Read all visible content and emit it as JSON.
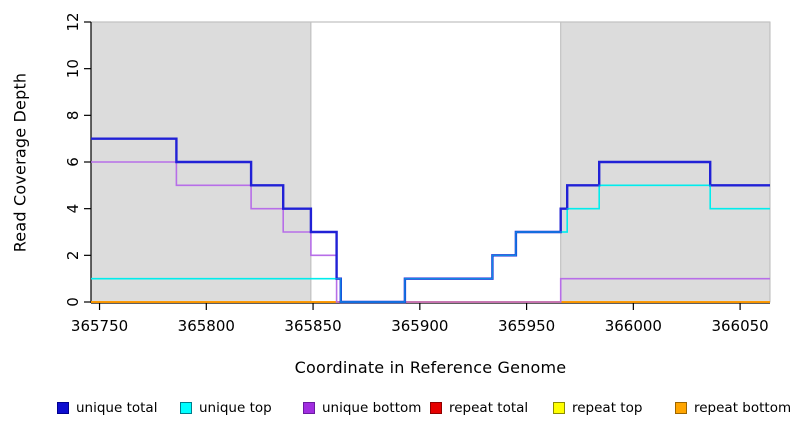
{
  "chart_data": {
    "type": "line",
    "subtype": "step",
    "title": "",
    "xlabel": "Coordinate in Reference Genome",
    "ylabel": "Read Coverage Depth",
    "xlim": [
      365746,
      366064
    ],
    "ylim": [
      0,
      12
    ],
    "x_ticks": [
      365750,
      365800,
      365850,
      365900,
      365950,
      366000,
      366050
    ],
    "y_ticks": [
      0,
      2,
      4,
      6,
      8,
      10,
      12
    ],
    "grid": false,
    "background_color": "#ffffff",
    "shading_color": "#dcdcdc",
    "shading_border_color": "#b9b9b9",
    "axis_color": "#000000",
    "shaded_regions": [
      {
        "name": "left-gray-region",
        "from": 365746,
        "to": 365849
      },
      {
        "name": "right-gray-region",
        "from": 365966,
        "to": 366064
      }
    ],
    "series": [
      {
        "name": "repeat top",
        "color": "#ffff00",
        "width": 1.5,
        "steps": [
          [
            365746,
            0
          ]
        ]
      },
      {
        "name": "repeat total",
        "color": "#dd0000",
        "width": 1.5,
        "steps": [
          [
            365746,
            0
          ]
        ]
      },
      {
        "name": "repeat bottom",
        "color": "#ff9f00",
        "width": 1.8,
        "steps": [
          [
            365746,
            0
          ]
        ]
      },
      {
        "name": "unique bottom",
        "color": "#b76ee8",
        "width": 1.6,
        "steps": [
          [
            365746,
            6
          ],
          [
            365786,
            5
          ],
          [
            365821,
            4
          ],
          [
            365836,
            3
          ],
          [
            365849,
            2
          ],
          [
            365861,
            0
          ],
          [
            365966,
            1
          ]
        ]
      },
      {
        "name": "unique top",
        "color": "#00eded",
        "width": 1.6,
        "steps": [
          [
            365746,
            1
          ],
          [
            365863,
            0
          ],
          [
            365893,
            1
          ],
          [
            365934,
            2
          ],
          [
            365945,
            3
          ],
          [
            365969,
            4
          ],
          [
            365984,
            5
          ],
          [
            366036,
            4
          ]
        ]
      },
      {
        "name": "unique total",
        "color": "#2121d6",
        "width": 2.4,
        "steps": [
          [
            365746,
            7
          ],
          [
            365786,
            6
          ],
          [
            365821,
            5
          ],
          [
            365836,
            4
          ],
          [
            365849,
            3
          ],
          [
            365861,
            1
          ],
          [
            365863,
            0
          ],
          [
            365893,
            1
          ],
          [
            365934,
            2
          ],
          [
            365945,
            3
          ],
          [
            365966,
            4
          ],
          [
            365969,
            5
          ],
          [
            365984,
            6
          ],
          [
            366036,
            5
          ]
        ]
      }
    ],
    "legend": [
      {
        "label": "unique total",
        "fill": "#0d0dd0",
        "border": "#000090"
      },
      {
        "label": "unique top",
        "fill": "#00ffff",
        "border": "#007d8c"
      },
      {
        "label": "unique bottom",
        "fill": "#a12de0",
        "border": "#6a1ba0"
      },
      {
        "label": "repeat total",
        "fill": "#e60000",
        "border": "#8f0000"
      },
      {
        "label": "repeat top",
        "fill": "#ffff00",
        "border": "#8c8c00"
      },
      {
        "label": "repeat bottom",
        "fill": "#ffa500",
        "border": "#9c6500"
      }
    ],
    "legend_position": "bottom"
  }
}
